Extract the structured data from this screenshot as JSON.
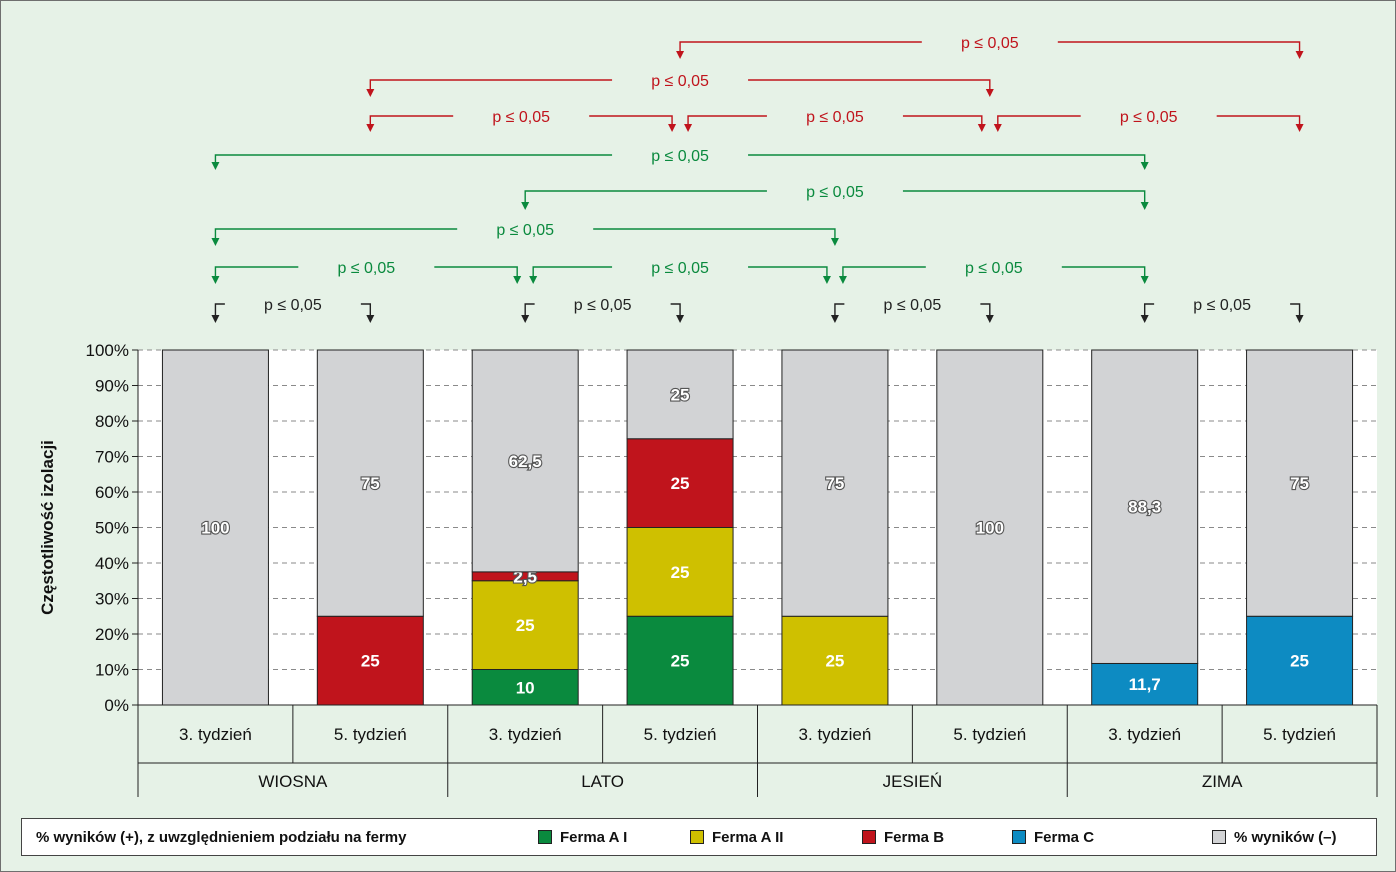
{
  "chart_data": {
    "type": "bar",
    "stacked": true,
    "ylabel": "Częstotliwość izolacji",
    "ylim": [
      0,
      100
    ],
    "yticks": [
      "0%",
      "10%",
      "20%",
      "30%",
      "40%",
      "50%",
      "60%",
      "70%",
      "80%",
      "90%",
      "100%"
    ],
    "grid": true,
    "legend_position": "bottom",
    "groups": [
      "WIOSNA",
      "LATO",
      "JESIEŃ",
      "ZIMA"
    ],
    "categories": [
      "3. tydzień",
      "5. tydzień",
      "3. tydzień",
      "5. tydzień",
      "3. tydzień",
      "5. tydzień",
      "3. tydzień",
      "5. tydzień"
    ],
    "series": [
      {
        "name": "Ferma A I",
        "color": "#0a8a3e",
        "values": [
          0,
          0,
          10,
          25,
          0,
          0,
          0,
          0
        ],
        "labels": [
          "",
          "",
          "10",
          "25",
          "",
          "",
          "",
          ""
        ]
      },
      {
        "name": "Ferma A II",
        "color": "#cfc000",
        "values": [
          0,
          0,
          25,
          25,
          25,
          0,
          0,
          0
        ],
        "labels": [
          "",
          "",
          "25",
          "25",
          "25",
          "",
          "",
          ""
        ]
      },
      {
        "name": "Ferma B",
        "color": "#c0141c",
        "values": [
          0,
          25,
          2.5,
          25,
          0,
          0,
          0,
          0
        ],
        "labels": [
          "",
          "25",
          "2,5",
          "25",
          "",
          "",
          "",
          ""
        ]
      },
      {
        "name": "Ferma C",
        "color": "#0d8bc2",
        "values": [
          0,
          0,
          0,
          0,
          0,
          0,
          11.7,
          25
        ],
        "labels": [
          "",
          "",
          "",
          "",
          "",
          "",
          "11,7",
          "25"
        ]
      },
      {
        "name": "% wyników (–)",
        "color": "#d2d3d5",
        "values": [
          100,
          75,
          62.5,
          25,
          75,
          100,
          88.3,
          75
        ],
        "labels": [
          "100",
          "75",
          "62,5",
          "25",
          "75",
          "100",
          "88,3",
          "75"
        ]
      }
    ],
    "significance": [
      {
        "from": 3,
        "to": 7,
        "label": "p ≤ 0,05",
        "color": "#c0141c"
      },
      {
        "from": 1,
        "to": 5,
        "label": "p ≤ 0,05",
        "color": "#c0141c"
      },
      {
        "from": 1,
        "to": 3,
        "label": "p ≤ 0,05",
        "color": "#c0141c"
      },
      {
        "from": 3,
        "to": 5,
        "label": "p ≤ 0,05",
        "color": "#c0141c"
      },
      {
        "from": 5,
        "to": 7,
        "label": "p ≤ 0,05",
        "color": "#c0141c"
      },
      {
        "from": 0,
        "to": 6,
        "label": "p ≤ 0,05",
        "color": "#0a8a3e"
      },
      {
        "from": 2,
        "to": 6,
        "label": "p ≤ 0,05",
        "color": "#0a8a3e"
      },
      {
        "from": 0,
        "to": 4,
        "label": "p ≤ 0,05",
        "color": "#0a8a3e"
      },
      {
        "from": 0,
        "to": 2,
        "label": "p ≤ 0,05",
        "color": "#0a8a3e"
      },
      {
        "from": 2,
        "to": 4,
        "label": "p ≤ 0,05",
        "color": "#0a8a3e"
      },
      {
        "from": 4,
        "to": 6,
        "label": "p ≤ 0,05",
        "color": "#0a8a3e"
      },
      {
        "from": 0,
        "to": 1,
        "label": "p ≤ 0,05",
        "color": "#222222"
      },
      {
        "from": 2,
        "to": 3,
        "label": "p ≤ 0,05",
        "color": "#222222"
      },
      {
        "from": 4,
        "to": 5,
        "label": "p ≤ 0,05",
        "color": "#222222"
      },
      {
        "from": 6,
        "to": 7,
        "label": "p ≤ 0,05",
        "color": "#222222"
      }
    ]
  },
  "legend": {
    "intro": "% wyników (+), z uwzględnieniem podziału na fermy",
    "items": [
      "Ferma A I",
      "Ferma A II",
      "Ferma B",
      "Ferma C",
      "% wyników (–)"
    ]
  }
}
